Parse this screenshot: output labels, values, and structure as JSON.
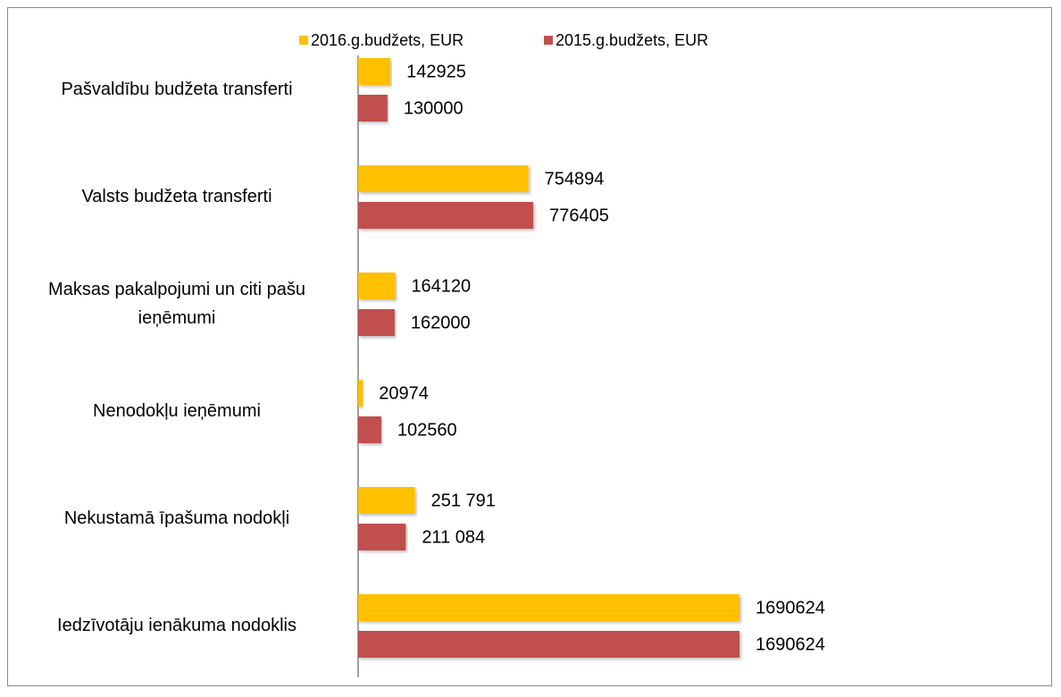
{
  "chart_data": {
    "type": "bar",
    "orientation": "horizontal",
    "categories": [
      "Pašvaldību budžeta transferti",
      "Valsts budžeta transferti",
      "Maksas pakalpojumi un citi pašu ieņēmumi",
      "Nenodokļu ieņēmumi",
      "Nekustamā īpašuma nodokļi",
      "Iedzīvotāju ienākuma nodoklis"
    ],
    "series": [
      {
        "name": "2016.g.budžets, EUR",
        "color": "#FFC000",
        "values": [
          142925,
          754894,
          164120,
          20974,
          251791,
          1690624
        ],
        "value_labels": [
          "142925",
          "754894",
          "164120",
          "20974",
          "251 791",
          "1690624"
        ]
      },
      {
        "name": "2015.g.budžets, EUR",
        "color": "#C0504D",
        "values": [
          130000,
          776405,
          162000,
          102560,
          211084,
          1690624
        ],
        "value_labels": [
          "130000",
          "776405",
          "162000",
          "102560",
          "211 084",
          "1690624"
        ]
      }
    ],
    "legend": "top"
  }
}
